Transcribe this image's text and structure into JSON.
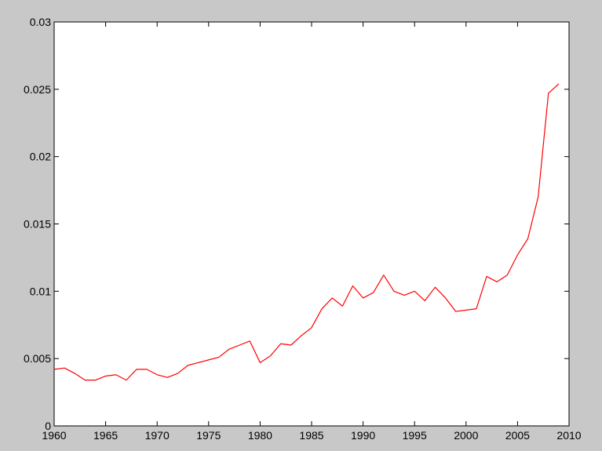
{
  "chart_data": {
    "type": "line",
    "title": "",
    "xlabel": "",
    "ylabel": "",
    "xlim": [
      1960,
      2010
    ],
    "ylim": [
      0,
      0.03
    ],
    "x_ticks": [
      1960,
      1965,
      1970,
      1975,
      1980,
      1985,
      1990,
      1995,
      2000,
      2005,
      2010
    ],
    "x_tick_labels": [
      "1960",
      "1965",
      "1970",
      "1975",
      "1980",
      "1985",
      "1990",
      "1995",
      "2000",
      "2005",
      "2010"
    ],
    "y_ticks": [
      0,
      0.005,
      0.01,
      0.015,
      0.02,
      0.025,
      0.03
    ],
    "y_tick_labels": [
      "0",
      "0.005",
      "0.01",
      "0.015",
      "0.02",
      "0.025",
      "0.03"
    ],
    "grid": false,
    "legend": null,
    "series": [
      {
        "color": "#ff0000",
        "x": [
          1960,
          1961,
          1962,
          1963,
          1964,
          1965,
          1966,
          1967,
          1968,
          1969,
          1970,
          1971,
          1972,
          1973,
          1974,
          1975,
          1976,
          1977,
          1978,
          1979,
          1980,
          1981,
          1982,
          1983,
          1984,
          1985,
          1986,
          1987,
          1988,
          1989,
          1990,
          1991,
          1992,
          1993,
          1994,
          1995,
          1996,
          1997,
          1998,
          1999,
          2000,
          2001,
          2002,
          2003,
          2004,
          2005,
          2006,
          2007,
          2008,
          2009
        ],
        "values": [
          0.0042,
          0.0043,
          0.0039,
          0.0034,
          0.0034,
          0.0037,
          0.0038,
          0.0034,
          0.0042,
          0.0042,
          0.0038,
          0.0036,
          0.0039,
          0.0045,
          0.0047,
          0.0049,
          0.0051,
          0.0057,
          0.006,
          0.0063,
          0.0047,
          0.0052,
          0.0061,
          0.006,
          0.0067,
          0.0073,
          0.0087,
          0.0095,
          0.0089,
          0.0104,
          0.0095,
          0.0099,
          0.0112,
          0.01,
          0.0097,
          0.01,
          0.0093,
          0.0103,
          0.0095,
          0.0085,
          0.0086,
          0.0087,
          0.0111,
          0.0107,
          0.0112,
          0.0127,
          0.0139,
          0.017,
          0.0247,
          0.0254
        ]
      }
    ]
  }
}
